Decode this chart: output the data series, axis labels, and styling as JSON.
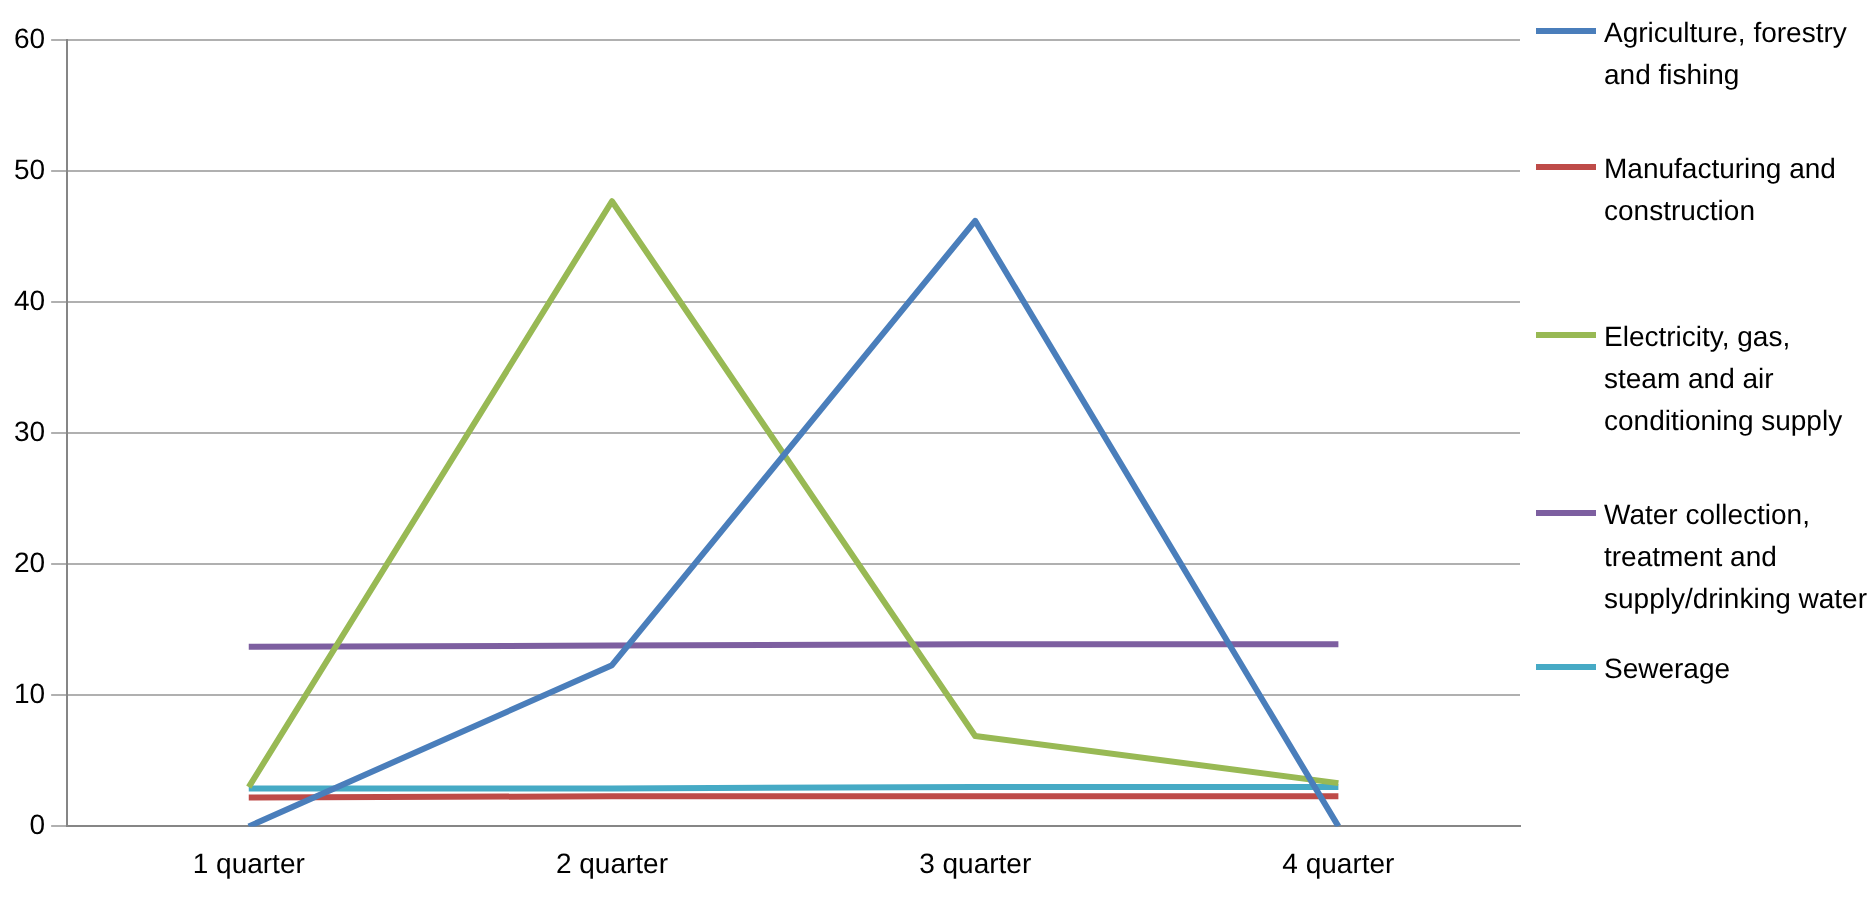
{
  "chart_data": {
    "type": "line",
    "categories": [
      "1 quarter",
      "2 quarter",
      "3 quarter",
      "4 quarter"
    ],
    "series": [
      {
        "name": "Agriculture, forestry and fishing",
        "color": "#4a7ebb",
        "values": [
          0,
          12.3,
          46.2,
          0
        ]
      },
      {
        "name": "Manufacturing and construction",
        "color": "#be4b48",
        "values": [
          2.2,
          2.3,
          2.3,
          2.3
        ]
      },
      {
        "name": "Electricity, gas, steam and air conditioning supply",
        "color": "#98b954",
        "values": [
          3,
          47.7,
          6.9,
          3.3
        ]
      },
      {
        "name": "Water collection, treatment and supply/drinking water",
        "color": "#7d5fa0",
        "values": [
          13.7,
          13.8,
          13.9,
          13.9
        ]
      },
      {
        "name": "Sewerage",
        "color": "#46aac5",
        "values": [
          2.9,
          2.9,
          3,
          3
        ]
      }
    ],
    "ylim": [
      0,
      60
    ],
    "yticks": [
      0,
      10,
      20,
      30,
      40,
      50,
      60
    ],
    "grid": "y",
    "legend": "right",
    "marker": "none",
    "line_style": "solid"
  }
}
